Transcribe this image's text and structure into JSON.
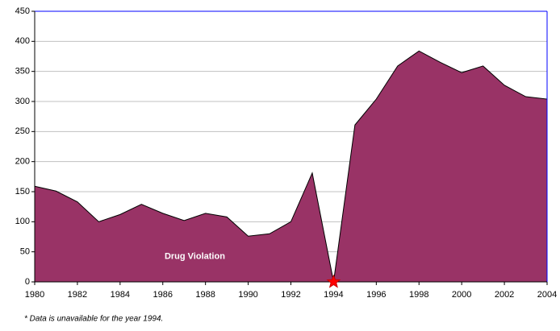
{
  "chart_data": {
    "type": "area",
    "x": [
      1980,
      1981,
      1982,
      1983,
      1984,
      1985,
      1986,
      1987,
      1988,
      1989,
      1990,
      1991,
      1992,
      1993,
      1994,
      1995,
      1996,
      1997,
      1998,
      1999,
      2000,
      2001,
      2002,
      2003,
      2004
    ],
    "series": [
      {
        "name": "Drug Violation",
        "color": "#993366",
        "values": [
          159,
          151,
          133,
          100,
          112,
          129,
          114,
          102,
          114,
          108,
          76,
          80,
          100,
          181,
          0,
          261,
          304,
          359,
          384,
          365,
          348,
          359,
          327,
          308,
          304
        ]
      }
    ],
    "xlim": [
      1980,
      2004
    ],
    "xticks": [
      1980,
      1982,
      1984,
      1986,
      1988,
      1990,
      1992,
      1994,
      1996,
      1998,
      2000,
      2002,
      2004
    ],
    "ylim": [
      0,
      450
    ],
    "yticks": [
      0,
      50,
      100,
      150,
      200,
      250,
      300,
      350,
      400,
      450
    ],
    "grid": true,
    "annotations": [
      "* Data is unavailable for the year 1994."
    ]
  }
}
